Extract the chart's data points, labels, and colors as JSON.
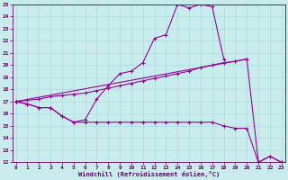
{
  "xlabel": "Windchill (Refroidissement éolien,°C)",
  "background_color": "#c8ecec",
  "line_color": "#990099",
  "grid_color": "#aadddd",
  "text_color": "#660066",
  "xmin": 0,
  "xmax": 23,
  "ymin": 12,
  "ymax": 25,
  "s1x": [
    0,
    1,
    2,
    3,
    4,
    5,
    6,
    7,
    8,
    9,
    10,
    11,
    12,
    13,
    14,
    15,
    16,
    17,
    18
  ],
  "s1y": [
    17.0,
    16.8,
    16.5,
    16.5,
    15.8,
    15.3,
    15.5,
    17.2,
    18.3,
    19.3,
    19.5,
    20.2,
    22.2,
    22.5,
    25.0,
    24.7,
    25.0,
    24.8,
    20.5
  ],
  "s2x": [
    0,
    1,
    2,
    3,
    4,
    5,
    6,
    7,
    8,
    9,
    10,
    11,
    12,
    13,
    14,
    15,
    16,
    17,
    18,
    19,
    20,
    21,
    22,
    23
  ],
  "s2y": [
    17.0,
    16.8,
    16.5,
    16.5,
    15.8,
    15.3,
    15.3,
    15.3,
    15.3,
    15.3,
    15.3,
    15.3,
    15.3,
    15.3,
    15.3,
    15.3,
    15.3,
    15.3,
    15.0,
    14.8,
    14.8,
    12.0,
    12.5,
    12.0
  ],
  "s3x": [
    0,
    20,
    21,
    22,
    23
  ],
  "s3y": [
    17.0,
    20.5,
    12.0,
    12.5,
    12.0
  ],
  "s4x": [
    0,
    1,
    2,
    3,
    4,
    5,
    6,
    7,
    8,
    9,
    10,
    11,
    12,
    13,
    14,
    15,
    16,
    17,
    18,
    19,
    20
  ],
  "s4y": [
    17.0,
    17.1,
    17.2,
    17.4,
    17.5,
    17.6,
    17.7,
    17.9,
    18.1,
    18.3,
    18.5,
    18.7,
    18.9,
    19.1,
    19.3,
    19.5,
    19.8,
    20.0,
    20.2,
    20.3,
    20.5
  ]
}
